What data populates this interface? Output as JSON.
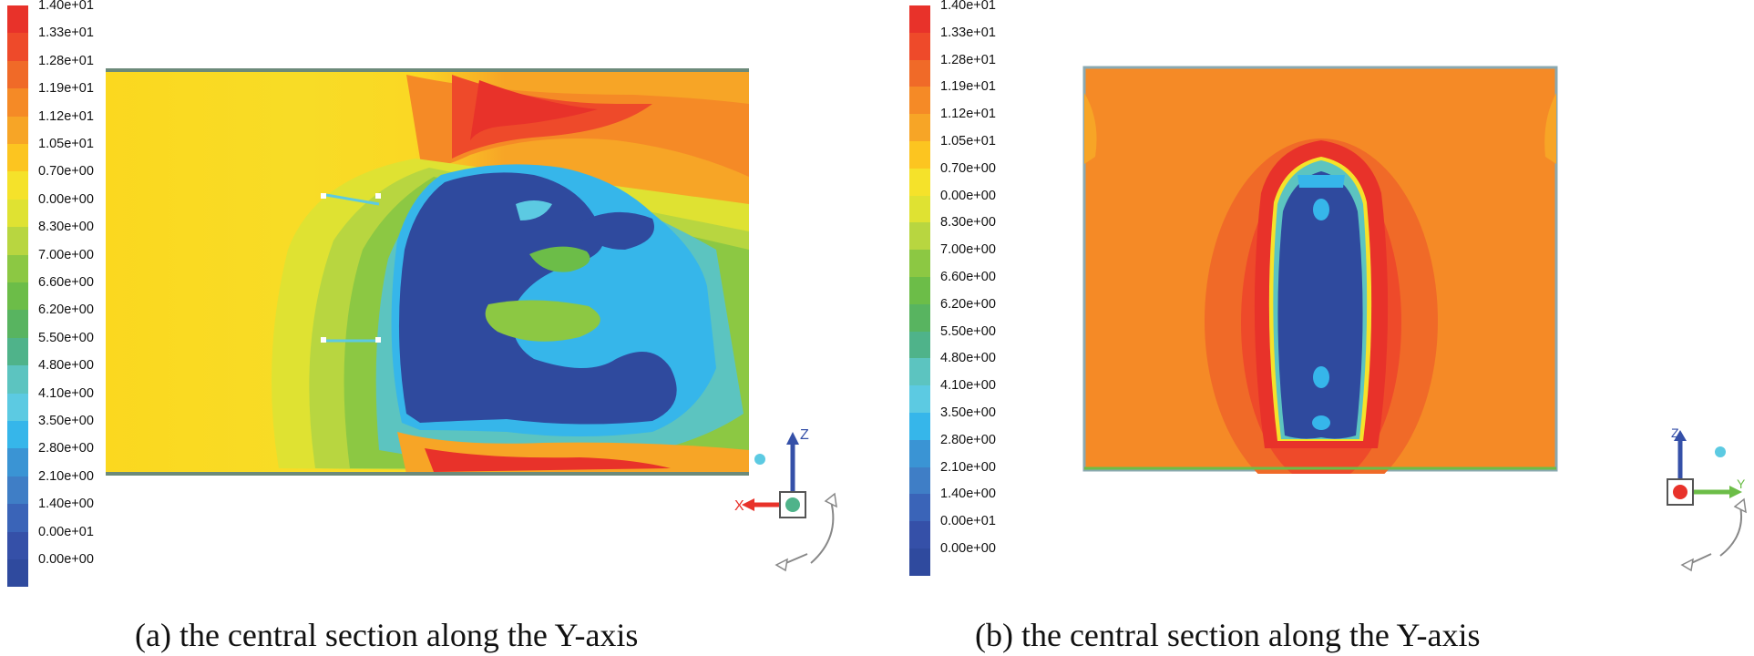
{
  "legend": {
    "ticks": [
      "1.40e+01",
      "1.33e+01",
      "1.28e+01",
      "1.19e+01",
      "1.12e+01",
      "1.05e+01",
      "0.70e+00",
      "0.00e+00",
      "8.30e+00",
      "7.00e+00",
      "6.60e+00",
      "6.20e+00",
      "5.50e+00",
      "4.80e+00",
      "4.10e+00",
      "3.50e+00",
      "2.80e+00",
      "2.10e+00",
      "1.40e+00",
      "0.00e+01",
      "0.00e+00"
    ],
    "colors": [
      "#e8322a",
      "#ee4a2a",
      "#f06a28",
      "#f58a26",
      "#f7a526",
      "#fcc520",
      "#f5e22a",
      "#dfe232",
      "#b8d640",
      "#8cc843",
      "#6cbd48",
      "#58b460",
      "#4fb38a",
      "#5cc4c0",
      "#5ccae2",
      "#36b6ea",
      "#3a94d4",
      "#3f7ec6",
      "#3a64b8",
      "#3550a8",
      "#2f4a9e"
    ]
  },
  "axes": {
    "z": "Z",
    "x": "X",
    "y": "Y"
  },
  "captions": {
    "a": "(a) the central section along the Y-axis",
    "b": "(b) the central section along the Y-axis"
  }
}
